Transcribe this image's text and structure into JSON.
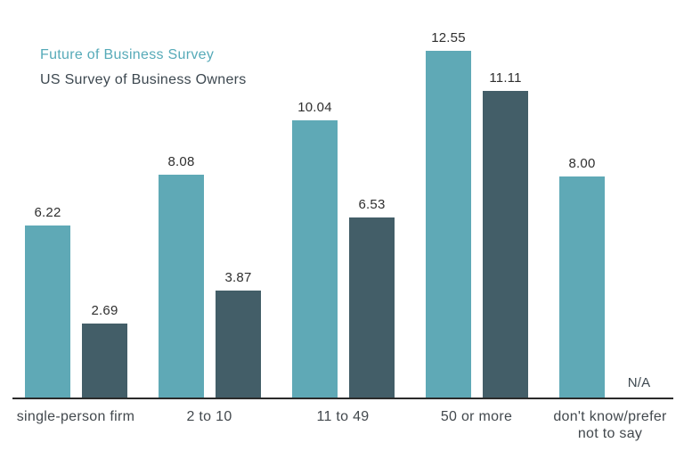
{
  "chart_data": {
    "type": "bar",
    "categories": [
      "single-person firm",
      "2 to 10",
      "11 to 49",
      "50 or more",
      "don't know/prefer not to say"
    ],
    "series": [
      {
        "name": "Future of Business Survey",
        "color": "#5fa9b6",
        "legend_text_color": "#56aab8",
        "values": [
          6.22,
          8.08,
          10.04,
          12.55,
          8.0
        ]
      },
      {
        "name": "US Survey of Business Owners",
        "color": "#435e68",
        "legend_text_color": "#3d4850",
        "values": [
          2.69,
          3.87,
          6.53,
          11.11,
          null
        ]
      }
    ],
    "missing_value_label": "N/A",
    "value_labels_visible": true,
    "value_label_decimals": 2,
    "value_label_color": "#2f2f2f",
    "axis_color": "#2b2b2b",
    "xlabel_color": "#42484d",
    "title": "",
    "xlabel": "",
    "ylabel": "",
    "ylim": [
      0,
      14
    ],
    "grid": false,
    "legend_position": "top-left"
  }
}
